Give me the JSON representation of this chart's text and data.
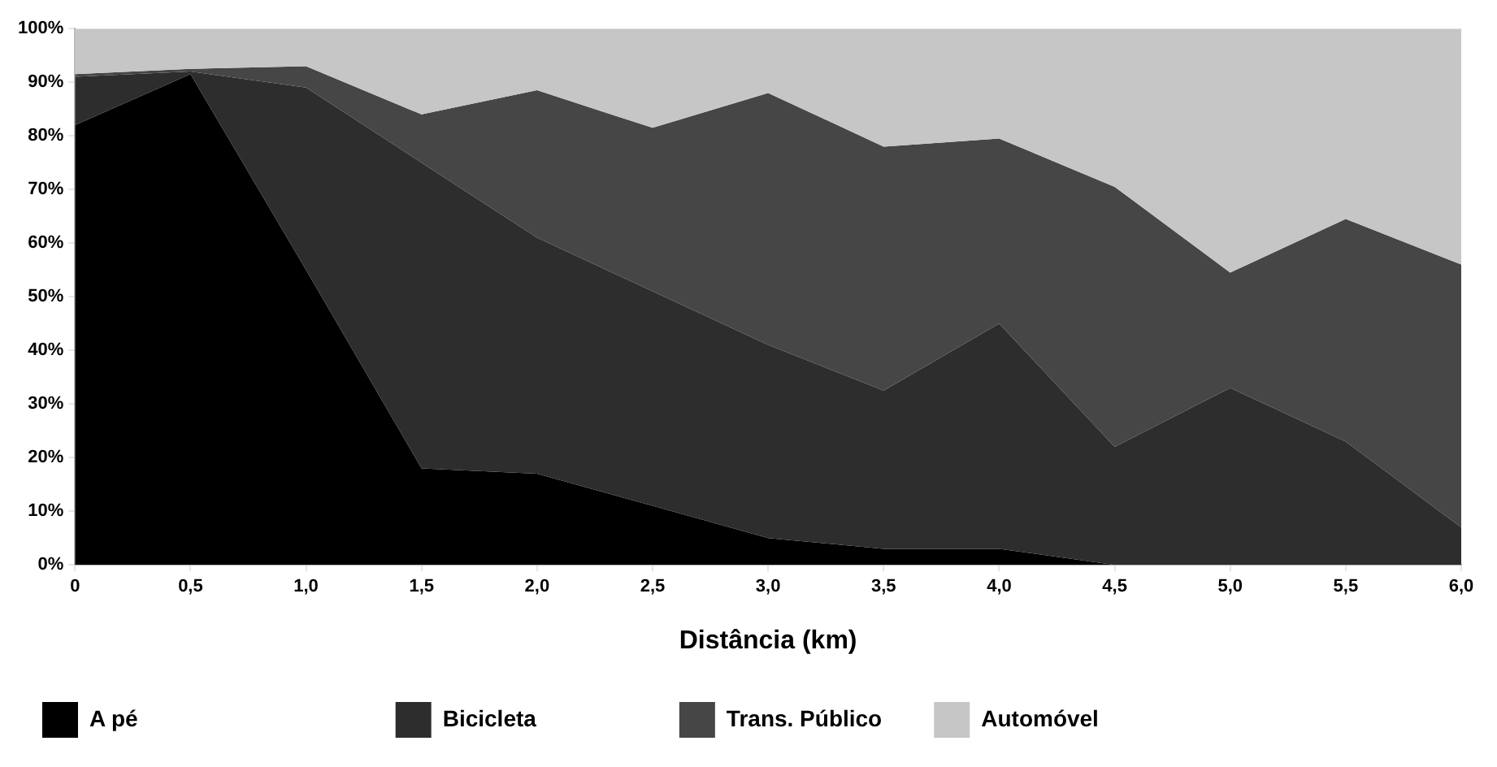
{
  "chart_data": {
    "type": "area",
    "stacked": true,
    "xlabel": "Distância (km)",
    "x": [
      0,
      0.5,
      1,
      1.5,
      2,
      2.5,
      3,
      3.5,
      4,
      4.5,
      5,
      5.5,
      6
    ],
    "series": [
      {
        "name": "A pé",
        "color": "#000000",
        "values": [
          82,
          91.5,
          55,
          18,
          17,
          11,
          5,
          3,
          3,
          0,
          0,
          0,
          0
        ]
      },
      {
        "name": "Bicicleta",
        "color": "#2d2d2d",
        "values": [
          9,
          0.5,
          34,
          57,
          44,
          40,
          36,
          29.5,
          42,
          22,
          33,
          23,
          7
        ]
      },
      {
        "name": "Trans. Público",
        "color": "#464646",
        "values": [
          0.5,
          0.5,
          4,
          9,
          27.5,
          30.5,
          47,
          45.5,
          34.5,
          48.5,
          21.5,
          41.5,
          49
        ]
      },
      {
        "name": "Automóvel",
        "color": "#c6c6c6",
        "values": [
          8.5,
          7.5,
          7,
          16,
          11.5,
          18.5,
          12,
          22,
          20.5,
          29.5,
          45.5,
          35.5,
          44
        ]
      }
    ],
    "xlim": [
      0,
      6
    ],
    "xticks": [
      0,
      {
        "value": 0.5,
        "label": "0,5"
      },
      {
        "value": 1,
        "label": "1,0"
      },
      {
        "value": 1.5,
        "label": "1,5"
      },
      {
        "value": 2,
        "label": "2,0"
      },
      {
        "value": 2.5,
        "label": "2,5"
      },
      {
        "value": 3,
        "label": "3,0"
      },
      {
        "value": 3.5,
        "label": "3,5"
      },
      {
        "value": 4,
        "label": "4,0"
      },
      {
        "value": 4.5,
        "label": "4,5"
      },
      {
        "value": 5,
        "label": "5,0"
      },
      {
        "value": 5.5,
        "label": "5,5"
      },
      {
        "value": 6,
        "label": "6,0"
      }
    ],
    "ylim": [
      0,
      100
    ],
    "yticks": [
      {
        "value": 0,
        "label": "0%"
      },
      {
        "value": 10,
        "label": "10%"
      },
      {
        "value": 20,
        "label": "20%"
      },
      {
        "value": 30,
        "label": "30%"
      },
      {
        "value": 40,
        "label": "40%"
      },
      {
        "value": 50,
        "label": "50%"
      },
      {
        "value": 60,
        "label": "60%"
      },
      {
        "value": 70,
        "label": "70%"
      },
      {
        "value": 80,
        "label": "80%"
      },
      {
        "value": 90,
        "label": "90%"
      },
      {
        "value": 100,
        "label": "100%"
      }
    ],
    "legend": "bottom",
    "grid": false
  }
}
